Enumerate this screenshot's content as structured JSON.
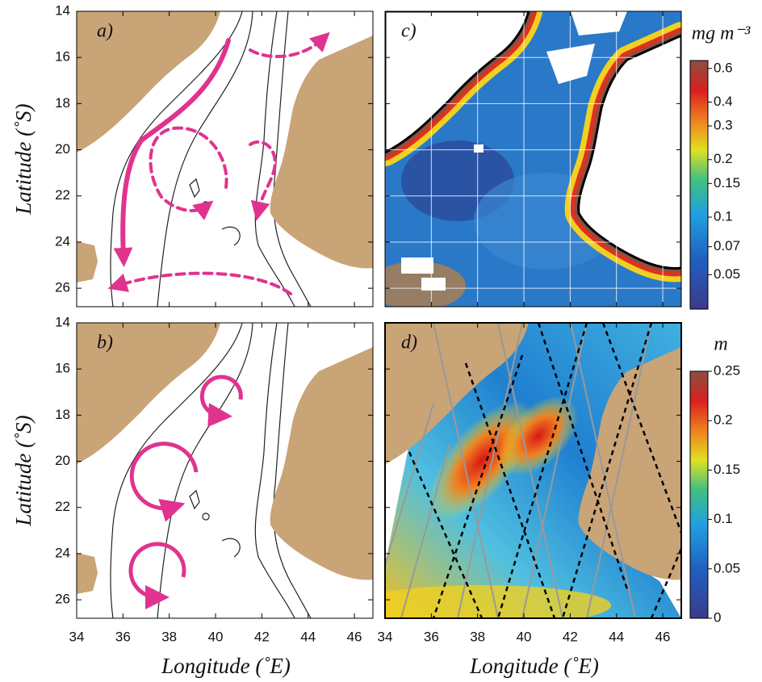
{
  "axes": {
    "x_title": "Longitude (˚E)",
    "y_title": "Latitude (˚S)",
    "xlim": [
      34,
      46.8
    ],
    "xticks": [
      34,
      36,
      38,
      40,
      42,
      44,
      46
    ],
    "ylim": [
      14,
      26.8
    ],
    "yticks": [
      14,
      16,
      18,
      20,
      22,
      24,
      26
    ]
  },
  "panels": [
    {
      "label": "a)"
    },
    {
      "label": "b)"
    },
    {
      "label": "c)",
      "grid": true,
      "colorbar": {
        "unit": "mg m⁻³",
        "log": true,
        "lim": [
          0.033,
          0.66
        ],
        "ticks": [
          0.6,
          0.4,
          0.3,
          0.2,
          0.15,
          0.1,
          0.07,
          0.05
        ]
      }
    },
    {
      "label": "d)",
      "colorbar": {
        "unit": "m",
        "log": false,
        "lim": [
          0,
          0.25
        ],
        "ticks": [
          0,
          0.05,
          0.1,
          0.15,
          0.2,
          0.25
        ]
      }
    }
  ]
}
